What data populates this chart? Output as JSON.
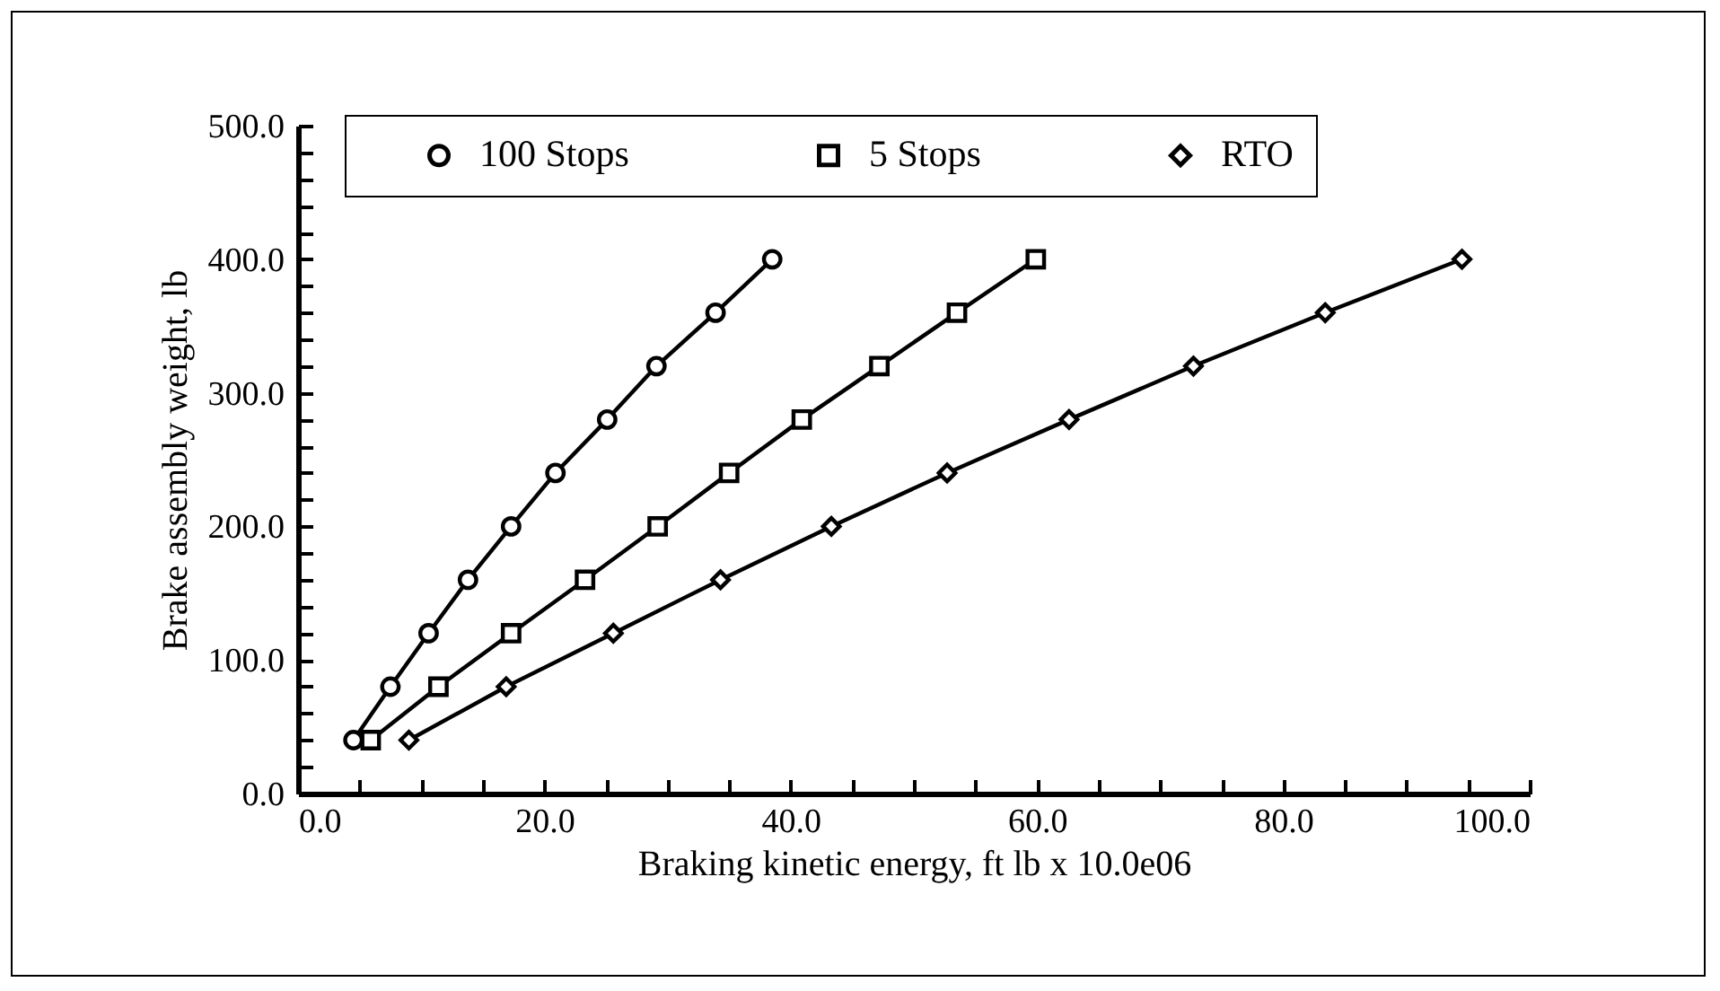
{
  "chart_data": {
    "type": "line",
    "xlabel": "Braking kinetic energy, ft lb x 10.0e06",
    "ylabel": "Brake assembly weight, lb",
    "xlim": [
      0,
      100
    ],
    "xticks": [
      {
        "value": 0,
        "label": "0.0"
      },
      {
        "value": 5,
        "label": null
      },
      {
        "value": 10,
        "label": null
      },
      {
        "value": 15,
        "label": null
      },
      {
        "value": 20,
        "label": "20.0"
      },
      {
        "value": 25,
        "label": null
      },
      {
        "value": 30,
        "label": null
      },
      {
        "value": 35,
        "label": null
      },
      {
        "value": 40,
        "label": "40.0"
      },
      {
        "value": 45,
        "label": null
      },
      {
        "value": 50,
        "label": null
      },
      {
        "value": 55,
        "label": null
      },
      {
        "value": 60,
        "label": "60.0"
      },
      {
        "value": 65,
        "label": null
      },
      {
        "value": 70,
        "label": null
      },
      {
        "value": 75,
        "label": null
      },
      {
        "value": 80,
        "label": "80.0"
      },
      {
        "value": 85,
        "label": null
      },
      {
        "value": 90,
        "label": null
      },
      {
        "value": 95,
        "label": null
      },
      {
        "value": 100,
        "label": "100.0"
      }
    ],
    "ylim": [
      0,
      500
    ],
    "yticks": [
      {
        "value": 0,
        "label": "0.0"
      },
      {
        "value": 20,
        "label": null
      },
      {
        "value": 40,
        "label": null
      },
      {
        "value": 60,
        "label": null
      },
      {
        "value": 80,
        "label": null
      },
      {
        "value": 100,
        "label": "100.0"
      },
      {
        "value": 120,
        "label": null
      },
      {
        "value": 140,
        "label": null
      },
      {
        "value": 160,
        "label": null
      },
      {
        "value": 180,
        "label": null
      },
      {
        "value": 200,
        "label": "200.0"
      },
      {
        "value": 220,
        "label": null
      },
      {
        "value": 240,
        "label": null
      },
      {
        "value": 260,
        "label": null
      },
      {
        "value": 280,
        "label": null
      },
      {
        "value": 300,
        "label": "300.0"
      },
      {
        "value": 320,
        "label": null
      },
      {
        "value": 340,
        "label": null
      },
      {
        "value": 360,
        "label": null
      },
      {
        "value": 380,
        "label": null
      },
      {
        "value": 400,
        "label": "400.0"
      },
      {
        "value": 420,
        "label": null
      },
      {
        "value": 440,
        "label": null
      },
      {
        "value": 460,
        "label": null
      },
      {
        "value": 480,
        "label": null
      },
      {
        "value": 500,
        "label": "500.0"
      }
    ],
    "grid": false,
    "legend": "top",
    "line_style": "solid",
    "series": [
      {
        "name": "100 Stops",
        "color": "#000000",
        "marker": "circle",
        "x": [
          4.5,
          7.5,
          10.6,
          13.8,
          17.3,
          20.9,
          25.1,
          29.1,
          33.9,
          38.5
        ],
        "values": [
          40,
          80,
          120,
          160,
          200,
          240,
          280,
          320,
          360,
          400
        ]
      },
      {
        "name": "5 Stops",
        "color": "#000000",
        "marker": "square",
        "x": [
          5.9,
          11.4,
          17.3,
          23.3,
          29.2,
          35.0,
          40.9,
          47.2,
          53.5,
          59.9
        ],
        "values": [
          40,
          80,
          120,
          160,
          200,
          240,
          280,
          320,
          360,
          400
        ]
      },
      {
        "name": "RTO",
        "color": "#000000",
        "marker": "diamond",
        "x": [
          9.0,
          16.9,
          25.6,
          34.3,
          43.3,
          52.7,
          62.6,
          72.7,
          83.4,
          94.5
        ],
        "values": [
          40,
          80,
          120,
          160,
          200,
          240,
          280,
          320,
          360,
          400
        ]
      }
    ]
  }
}
